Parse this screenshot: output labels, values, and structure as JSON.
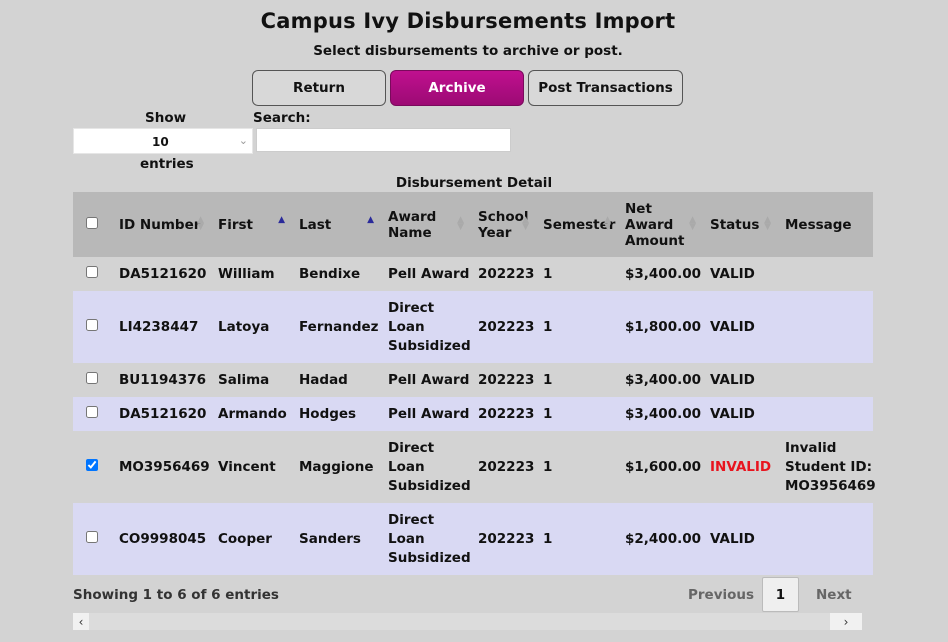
{
  "header": {
    "title": "Campus Ivy Disbursements Import",
    "subtitle": "Select disbursements to archive or post."
  },
  "buttons": {
    "return": "Return",
    "archive": "Archive",
    "post": "Post Transactions"
  },
  "controls": {
    "show_label": "Show",
    "entries_value": "10",
    "entries_label": "entries",
    "search_label": "Search:",
    "search_value": ""
  },
  "table": {
    "caption": "Disbursement Detail",
    "columns": [
      "ID Number",
      "First",
      "Last",
      "Award Name",
      "School Year",
      "Semester",
      "Net Award Amount",
      "Status",
      "Message"
    ],
    "rows": [
      {
        "checked": false,
        "id": "DA5121620",
        "first": "William",
        "last": "Bendixe",
        "award": "Pell Award",
        "year": "202223",
        "semester": "1",
        "amount": "$3,400.00",
        "status": "VALID",
        "message": ""
      },
      {
        "checked": false,
        "id": "LI4238447",
        "first": "Latoya",
        "last": "Fernandez",
        "award": "Direct Loan Subsidized",
        "year": "202223",
        "semester": "1",
        "amount": "$1,800.00",
        "status": "VALID",
        "message": ""
      },
      {
        "checked": false,
        "id": "BU1194376",
        "first": "Salima",
        "last": "Hadad",
        "award": "Pell Award",
        "year": "202223",
        "semester": "1",
        "amount": "$3,400.00",
        "status": "VALID",
        "message": ""
      },
      {
        "checked": false,
        "id": "DA5121620",
        "first": "Armando",
        "last": "Hodges",
        "award": "Pell Award",
        "year": "202223",
        "semester": "1",
        "amount": "$3,400.00",
        "status": "VALID",
        "message": ""
      },
      {
        "checked": true,
        "id": "MO3956469",
        "first": "Vincent",
        "last": "Maggione",
        "award": "Direct Loan Subsidized",
        "year": "202223",
        "semester": "1",
        "amount": "$1,600.00",
        "status": "INVALID",
        "message": "Invalid Student ID: MO3956469"
      },
      {
        "checked": false,
        "id": "CO9998045",
        "first": "Cooper",
        "last": "Sanders",
        "award": "Direct Loan Subsidized",
        "year": "202223",
        "semester": "1",
        "amount": "$2,400.00",
        "status": "VALID",
        "message": ""
      }
    ]
  },
  "footer": {
    "info": "Showing 1 to 6 of 6 entries",
    "previous": "Previous",
    "current_page": "1",
    "next": "Next"
  },
  "colors": {
    "accent": "#b30d84",
    "invalid": "#e8141e",
    "row_alt": "#d9d9f3",
    "header_bg": "#b8b8b8"
  }
}
